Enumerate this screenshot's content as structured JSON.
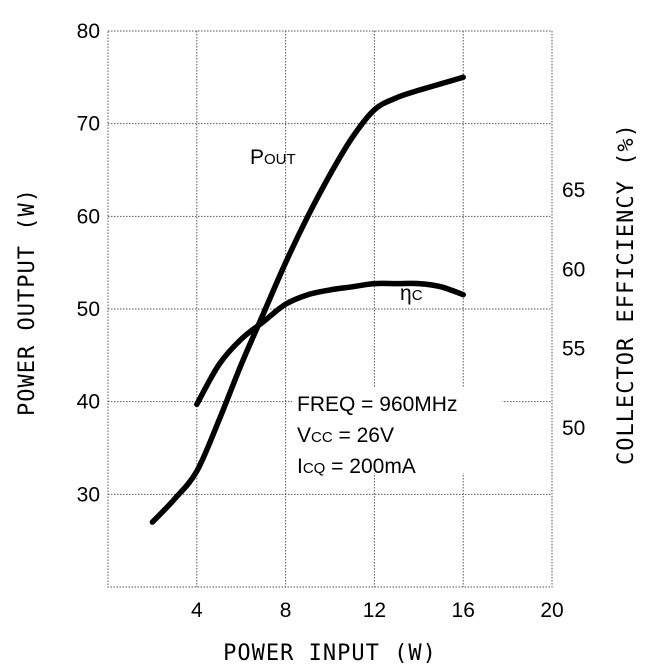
{
  "chart_data": {
    "type": "line",
    "xlabel": "POWER INPUT (W)",
    "ylabel": "POWER OUTPUT (W)",
    "y2label": "COLLECTOR EFFICIENCY (%)",
    "xlim": [
      0,
      20
    ],
    "ylim": [
      20,
      80
    ],
    "y2lim": [
      40,
      75
    ],
    "x_ticks": [
      "4",
      "8",
      "12",
      "16",
      "20"
    ],
    "y_ticks": [
      "30",
      "40",
      "50",
      "60",
      "70",
      "80"
    ],
    "y2_ticks": [
      "50",
      "55",
      "60",
      "65"
    ],
    "grid": true,
    "series": [
      {
        "name": "POUT",
        "label_main": "P",
        "label_sub": "OUT",
        "axis": "left",
        "x": [
          2,
          3,
          4,
          5,
          6,
          7,
          8,
          9,
          10,
          11,
          12,
          13,
          14,
          15,
          16
        ],
        "y": [
          27,
          29.5,
          32.5,
          38,
          44,
          49.5,
          55,
          60,
          64.5,
          68.5,
          71.5,
          72.8,
          73.6,
          74.3,
          75
        ]
      },
      {
        "name": "ηC",
        "label_main": "η",
        "label_sub": "C",
        "axis": "right",
        "x": [
          4,
          5,
          6,
          7,
          8,
          9,
          10,
          11,
          12,
          13,
          14,
          15,
          16
        ],
        "y": [
          51.5,
          54,
          55.6,
          56.7,
          57.8,
          58.4,
          58.7,
          58.9,
          59.1,
          59.1,
          59.1,
          58.9,
          58.4
        ]
      }
    ],
    "annotations": [
      {
        "main": "FREQ = 960MHz",
        "sub": "",
        "tail": ""
      },
      {
        "main": "V",
        "sub": "CC",
        "tail": " = 26V"
      },
      {
        "main": "I",
        "sub": "CQ",
        "tail": " = 200mA"
      }
    ]
  }
}
